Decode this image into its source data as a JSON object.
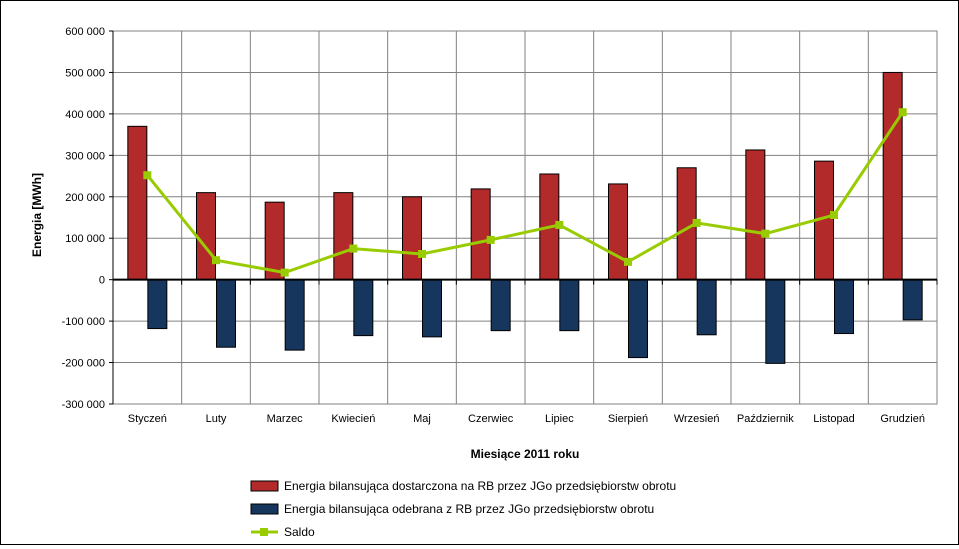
{
  "chart_data": {
    "type": "bar",
    "title": "",
    "xlabel": "Miesiące 2011  roku",
    "ylabel": "Energia [MWh]",
    "ylim": [
      -300000,
      600000
    ],
    "yticks": [
      600000,
      500000,
      400000,
      300000,
      200000,
      100000,
      0,
      -100000,
      -200000,
      -300000
    ],
    "ytick_labels": [
      "600 000",
      "500 000",
      "400 000",
      "300 000",
      "200 000",
      "100 000",
      "0",
      "-100 000",
      "-200 000",
      "-300 000"
    ],
    "grid": true,
    "legend_position": "bottom",
    "categories": [
      "Styczeń",
      "Luty",
      "Marzec",
      "Kwiecień",
      "Maj",
      "Czerwiec",
      "Lipiec",
      "Sierpień",
      "Wrzesień",
      "Październik",
      "Listopad",
      "Grudzień"
    ],
    "series": [
      {
        "name": "Energia bilansująca dostarczona na RB przez JGo przedsiębiorstw obrotu",
        "kind": "bar",
        "color": "#b22a2a",
        "values": [
          370000,
          210000,
          187000,
          210000,
          200000,
          219000,
          255000,
          231000,
          270000,
          313000,
          286000,
          500000
        ]
      },
      {
        "name": "Energia bilansująca odebrana z RB przez JGo przedsiębiorstw obrotu",
        "kind": "bar",
        "color": "#17365d",
        "values": [
          -118000,
          -163000,
          -170000,
          -135000,
          -138000,
          -123000,
          -123000,
          -188000,
          -133000,
          -202000,
          -130000,
          -97000
        ]
      },
      {
        "name": "Saldo",
        "kind": "line",
        "color": "#99cc00",
        "values": [
          252000,
          47000,
          17000,
          75000,
          62000,
          96000,
          132000,
          43000,
          137000,
          111000,
          156000,
          404000
        ]
      }
    ]
  }
}
